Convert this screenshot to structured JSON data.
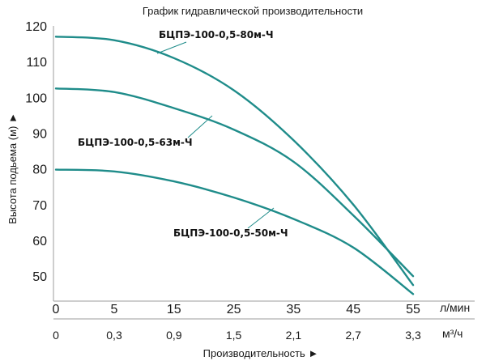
{
  "chart_data": {
    "type": "line",
    "title": "График гидравлической производительности",
    "xlabel": "Производительность ►",
    "ylabel": "Высота подьема (м) ►",
    "x_unit_primary": "л/мин",
    "x_unit_secondary": "м³/ч",
    "x_ticks_primary": [
      "0",
      "5",
      "15",
      "25",
      "35",
      "45",
      "55"
    ],
    "x_ticks_secondary": [
      "0",
      "0,3",
      "0,9",
      "1,5",
      "2,1",
      "2,7",
      "3,3"
    ],
    "y_ticks": [
      "50",
      "60",
      "70",
      "80",
      "90",
      "100",
      "110",
      "120"
    ],
    "xlim": [
      0,
      55
    ],
    "ylim": [
      42,
      120
    ],
    "grid": false,
    "series": [
      {
        "name": "БЦПЭ-100-0,5-80м-Ч",
        "color": "#1f8c8a",
        "x": [
          0,
          5,
          15,
          25,
          35,
          45,
          55
        ],
        "y": [
          117,
          116,
          111,
          102,
          88,
          70,
          47.5
        ]
      },
      {
        "name": "БЦПЭ-100-0,5-63м-Ч",
        "color": "#1f8c8a",
        "x": [
          0,
          5,
          15,
          25,
          35,
          45,
          55
        ],
        "y": [
          102.5,
          101.5,
          97,
          91,
          82,
          67,
          50
        ]
      },
      {
        "name": "БЦПЭ-100-0,5-50м-Ч",
        "color": "#1f8c8a",
        "x": [
          0,
          5,
          15,
          25,
          35,
          45,
          55
        ],
        "y": [
          79.8,
          79.3,
          76.5,
          72,
          66,
          58,
          45
        ]
      }
    ]
  }
}
